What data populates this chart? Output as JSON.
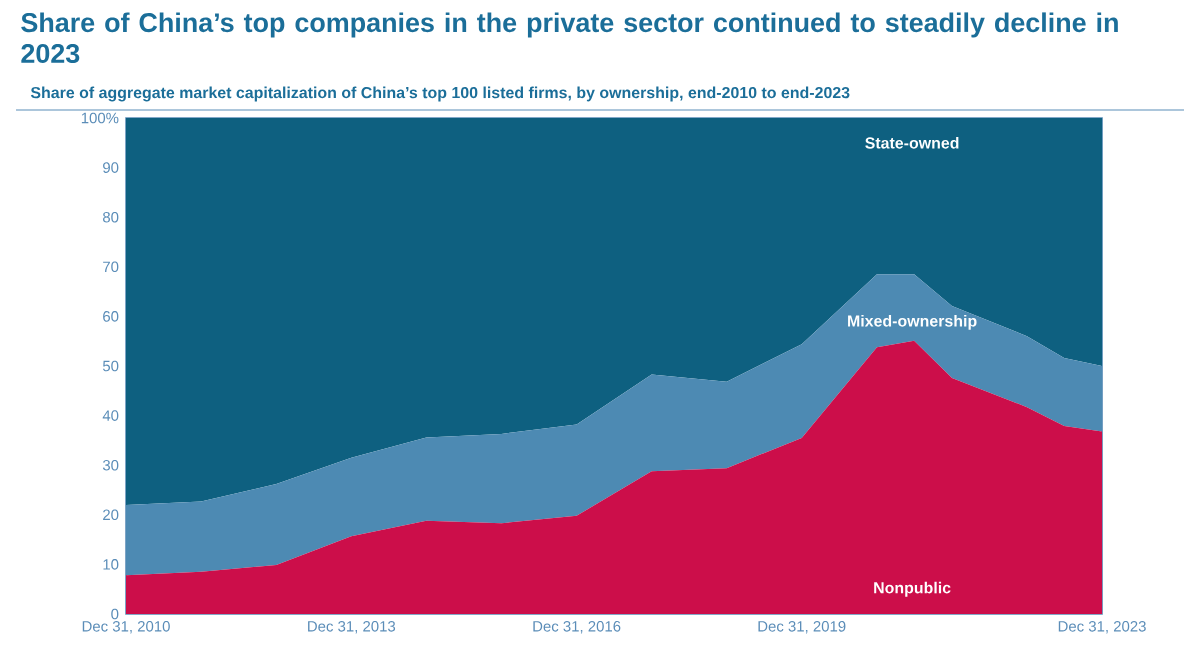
{
  "chart_data": {
    "type": "area",
    "stacked": true,
    "title": "Share of China’s top companies in the private sector continued to steadily decline in 2023",
    "subtitle": "Share of aggregate market capitalization of China’s top 100 listed firms, by ownership, end-2010 to end-2023",
    "x": [
      "2010-12-31",
      "2011-12-31",
      "2012-12-31",
      "2013-12-31",
      "2014-12-31",
      "2015-12-31",
      "2016-12-31",
      "2017-12-31",
      "2018-12-31",
      "2019-12-31",
      "2020-12-31",
      "2021-06-30",
      "2021-12-31",
      "2022-12-31",
      "2023-06-30",
      "2023-12-31"
    ],
    "series": [
      {
        "name": "Nonpublic",
        "color": "#cc0e4a",
        "values": [
          7.8,
          8.5,
          9.9,
          15.7,
          18.8,
          18.3,
          19.8,
          28.8,
          29.4,
          35.5,
          53.8,
          55.1,
          47.6,
          41.7,
          37.9,
          36.8
        ]
      },
      {
        "name": "Mixed-ownership",
        "color": "#4d8ab3",
        "values": [
          14.2,
          14.2,
          16.3,
          15.8,
          16.8,
          18.0,
          18.4,
          19.5,
          17.4,
          18.9,
          14.7,
          13.4,
          14.5,
          14.3,
          13.7,
          13.2
        ]
      },
      {
        "name": "State-owned",
        "color": "#0e6080",
        "values": [
          78.0,
          77.3,
          73.8,
          68.5,
          64.4,
          63.7,
          61.8,
          51.7,
          53.2,
          45.6,
          31.5,
          31.5,
          37.9,
          44.0,
          48.4,
          50.0
        ]
      }
    ],
    "xlim": [
      "2010-12-31",
      "2023-12-31"
    ],
    "xticks": [
      {
        "value": "2010-12-31",
        "label": "Dec 31, 2010"
      },
      {
        "value": "2013-12-31",
        "label": "Dec 31, 2013"
      },
      {
        "value": "2016-12-31",
        "label": "Dec 31, 2016"
      },
      {
        "value": "2019-12-31",
        "label": "Dec 31, 2019"
      },
      {
        "value": "2023-12-31",
        "label": "Dec 31, 2023"
      }
    ],
    "ylim": [
      0,
      100
    ],
    "yticks": [
      0,
      10,
      20,
      30,
      40,
      50,
      60,
      70,
      80,
      90,
      {
        "value": 100,
        "label": "100%"
      }
    ],
    "grid": false
  }
}
